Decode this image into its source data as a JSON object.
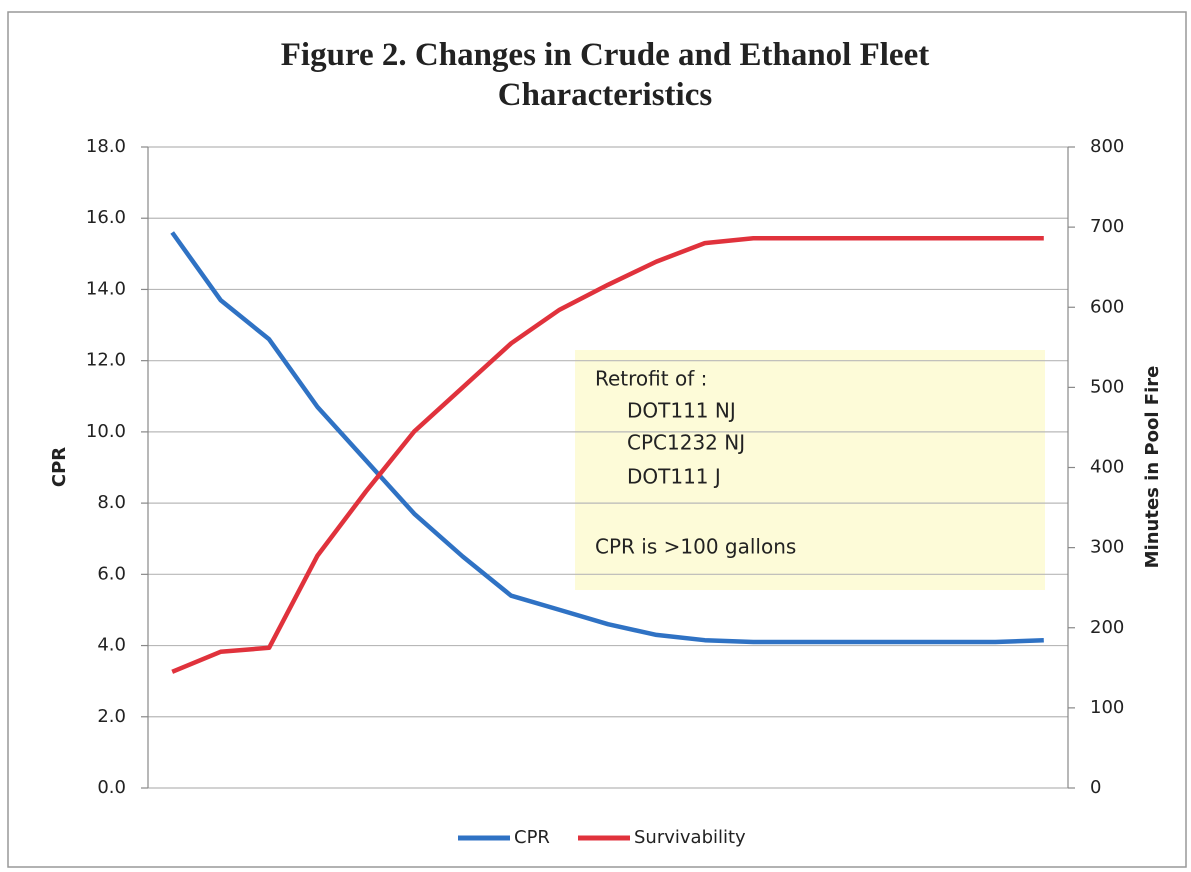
{
  "chart_data": {
    "type": "line",
    "title": "Figure 2. Changes in Crude and Ethanol Fleet Characteristics",
    "categories": [
      null,
      null,
      null,
      null,
      null,
      null,
      null,
      null,
      null,
      null,
      null,
      null,
      null,
      null,
      null,
      null,
      null,
      null,
      null
    ],
    "series": [
      {
        "name": "CPR",
        "color": "#2f72c4",
        "values": [
          15.6,
          13.7,
          12.6,
          10.7,
          9.2,
          7.7,
          6.5,
          5.4,
          5.0,
          4.6,
          4.3,
          4.15,
          4.1,
          4.1,
          4.1,
          4.1,
          4.1,
          4.1,
          4.15
        ]
      },
      {
        "name": "Survivability",
        "color": "#e0323c",
        "axis": "y2",
        "values": [
          145,
          170,
          175,
          290,
          370,
          445,
          500,
          555,
          597,
          628,
          657,
          680,
          686,
          686,
          686,
          686,
          686,
          686,
          686
        ]
      }
    ],
    "ylabel": "CPR",
    "y2label": "Minutes in Pool Fire",
    "ylim": [
      0,
      18
    ],
    "yticks": [
      {
        "value": 0,
        "label": "0.0"
      },
      {
        "value": 2,
        "label": "2.0"
      },
      {
        "value": 4,
        "label": "4.0"
      },
      {
        "value": 6,
        "label": "6.0"
      },
      {
        "value": 8,
        "label": "8.0"
      },
      {
        "value": 10,
        "label": "10.0"
      },
      {
        "value": 12,
        "label": "12.0"
      },
      {
        "value": 14,
        "label": "14.0"
      },
      {
        "value": 16,
        "label": "16.0"
      },
      {
        "value": 18,
        "label": "18.0"
      }
    ],
    "y2lim": [
      0,
      800
    ],
    "y2ticks": [
      0,
      100,
      200,
      300,
      400,
      500,
      600,
      700,
      800
    ],
    "grid": true,
    "legend": "bottom",
    "annotation": [
      "Retrofit of :",
      "DOT111 NJ",
      "CPC1232 NJ",
      "DOT111 J",
      "CPR is >100 gallons"
    ]
  }
}
